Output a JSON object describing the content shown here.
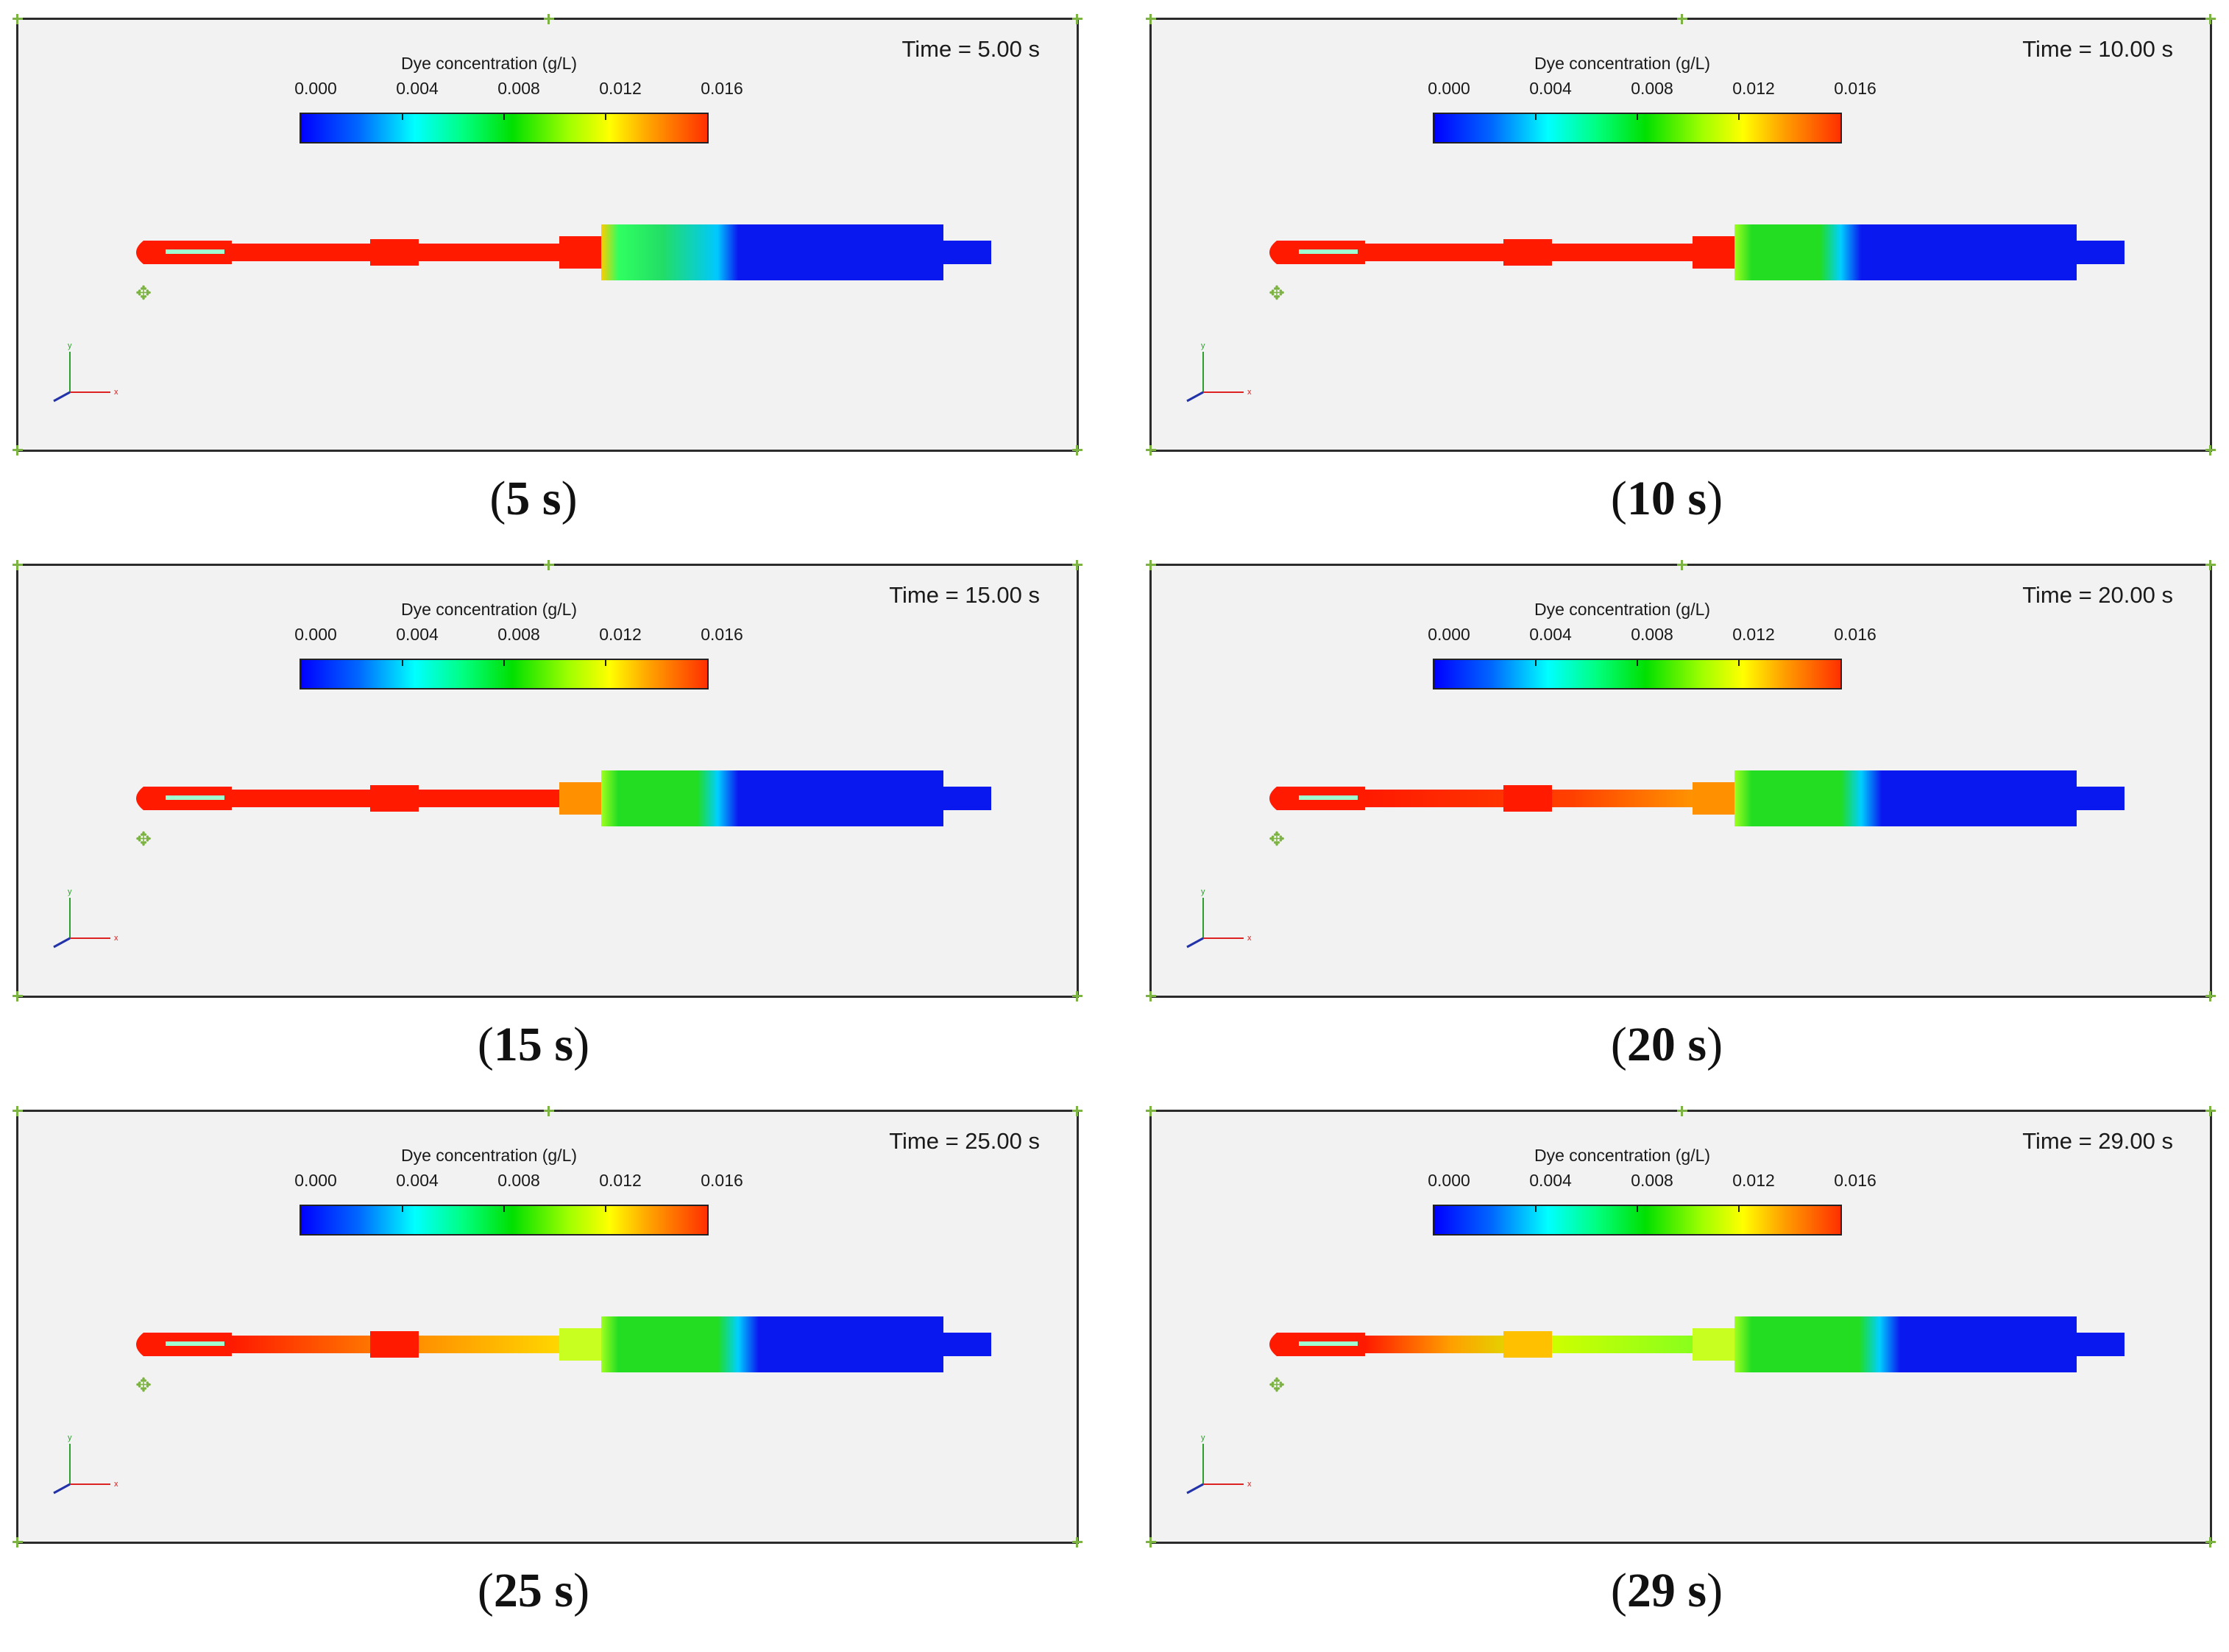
{
  "panels": [
    {
      "time_label": "Time = 5.00 s",
      "caption": "5 s",
      "stage": 5
    },
    {
      "time_label": "Time = 10.00 s",
      "caption": "10 s",
      "stage": 10
    },
    {
      "time_label": "Time = 15.00 s",
      "caption": "15 s",
      "stage": 15
    },
    {
      "time_label": "Time = 20.00 s",
      "caption": "20 s",
      "stage": 20
    },
    {
      "time_label": "Time = 25.00 s",
      "caption": "25 s",
      "stage": 25
    },
    {
      "time_label": "Time = 29.00 s",
      "caption": "29 s",
      "stage": 29
    }
  ],
  "colorbar": {
    "title": "Dye concentration (g/L)",
    "ticks": [
      "0.000",
      "0.004",
      "0.008",
      "0.012",
      "0.016"
    ]
  },
  "axes_labels": {
    "x": "x",
    "y": "y"
  },
  "colors": {
    "high": "#ff1a00",
    "mid": "#22dd22",
    "low": "#0a18f0",
    "frame_bg": "#f2f2f2",
    "marker": "#7cb342"
  }
}
